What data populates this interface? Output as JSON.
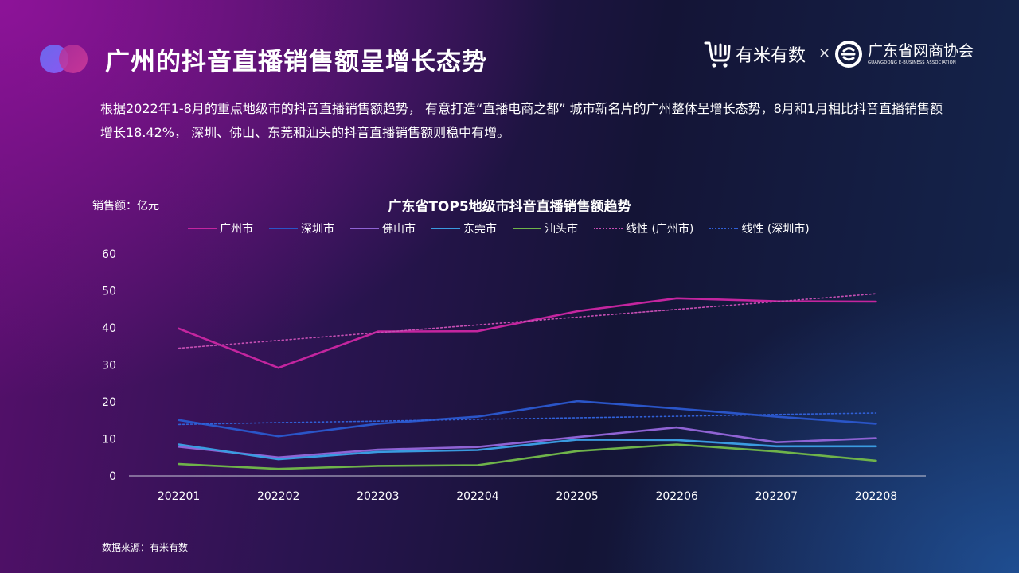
{
  "page": {
    "title": "广州的抖音直播销售额呈增长态势",
    "description": "根据2022年1-8月的重点地级市的抖音直播销售额趋势， 有意打造“直播电商之都” 城市新名片的广州整体呈增长态势，8月和1月相比抖音直播销售额增长18.42%， 深圳、佛山、东莞和汕头的抖音直播销售额则稳中有增。",
    "source": "数据来源：有米有数"
  },
  "logos": {
    "youmi": "有米有数",
    "times": "×",
    "assoc_cn": "广东省网商协会",
    "assoc_en": "GUANGDONG E-BUSINESS ASSOCIATION"
  },
  "colors": {
    "guangzhou": "#c4259f",
    "shenzhen": "#2a55c8",
    "foshan": "#8f63d4",
    "dongguan": "#3a9be0",
    "shantou": "#6fb34a",
    "trend_guangzhou": "#c64fb4",
    "trend_shenzhen": "#3060d8",
    "axis": "#c8c8d8"
  },
  "chart_data": {
    "type": "line",
    "title": "广东省TOP5地级市抖音直播销售额趋势",
    "ylabel": "销售额：亿元",
    "ylim": [
      0,
      60
    ],
    "yticks": [
      0,
      10,
      20,
      30,
      40,
      50,
      60
    ],
    "grid": false,
    "legend_position": "top",
    "categories": [
      "202201",
      "202202",
      "202203",
      "202204",
      "202205",
      "202206",
      "202207",
      "202208"
    ],
    "series": [
      {
        "name": "广州市",
        "color_key": "guangzhou",
        "style": "solid",
        "values": [
          39.8,
          29.2,
          39.0,
          39.1,
          44.5,
          48.0,
          47.2,
          47.1
        ]
      },
      {
        "name": "深圳市",
        "color_key": "shenzhen",
        "style": "solid",
        "values": [
          15.1,
          10.7,
          14.1,
          16.0,
          20.2,
          18.2,
          16.0,
          14.1
        ]
      },
      {
        "name": "佛山市",
        "color_key": "foshan",
        "style": "solid",
        "values": [
          7.9,
          5.0,
          7.1,
          7.8,
          10.5,
          13.1,
          9.1,
          10.2
        ]
      },
      {
        "name": "东莞市",
        "color_key": "dongguan",
        "style": "solid",
        "values": [
          8.5,
          4.5,
          6.5,
          7.0,
          9.8,
          9.7,
          8.0,
          8.0
        ]
      },
      {
        "name": "汕头市",
        "color_key": "shantou",
        "style": "solid",
        "values": [
          3.2,
          1.9,
          2.7,
          2.9,
          6.7,
          8.5,
          6.6,
          4.1
        ]
      },
      {
        "name": "线性 (广州市)",
        "color_key": "trend_guangzhou",
        "style": "dotted",
        "values": [
          34.5,
          36.6,
          38.7,
          40.8,
          42.9,
          45.0,
          47.1,
          49.2
        ]
      },
      {
        "name": "线性 (深圳市)",
        "color_key": "trend_shenzhen",
        "style": "dotted",
        "values": [
          13.9,
          14.4,
          14.8,
          15.3,
          15.7,
          16.1,
          16.6,
          17.0
        ]
      }
    ]
  }
}
